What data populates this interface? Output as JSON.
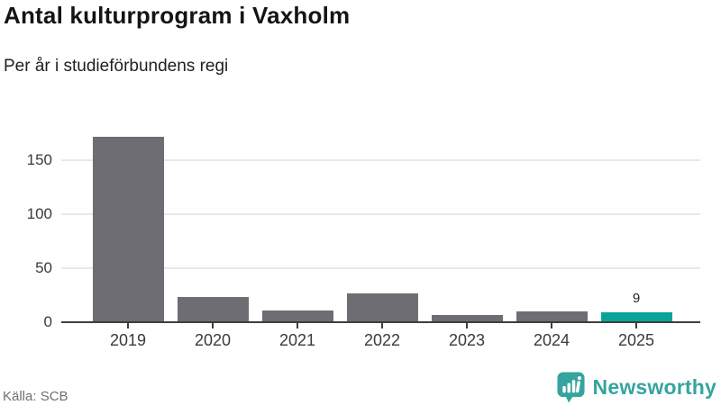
{
  "header": {
    "title": "Antal kulturprogram i Vaxholm",
    "subtitle": "Per år i studieförbundens regi"
  },
  "chart_data": {
    "type": "bar",
    "title": "Antal kulturprogram i Vaxholm",
    "subtitle": "Per år i studieförbundens regi",
    "categories": [
      "2019",
      "2020",
      "2021",
      "2022",
      "2023",
      "2024",
      "2025"
    ],
    "values": [
      172,
      23,
      11,
      27,
      7,
      10,
      9
    ],
    "bar_labels": [
      "",
      "",
      "",
      "",
      "",
      "",
      "9"
    ],
    "highlight_index": 6,
    "xlabel": "",
    "ylabel": "",
    "yticks": [
      0,
      50,
      100,
      150
    ],
    "ylim": [
      0,
      182
    ],
    "grid": "horizontal",
    "legend": "none"
  },
  "footer": {
    "source": "Källa: SCB",
    "brand_name": "Newsworthy"
  },
  "icons": {
    "brand_logo": "newsworthy-speech-bubble-bar-chart-icon"
  },
  "colors": {
    "background": "#ffffff",
    "bar": "#6e6d73",
    "highlight": "#0aa398",
    "axis": "#3e3e3e",
    "gridline": "#e9e9e9",
    "title_text": "#141414",
    "subtitle_text": "#1f1f1f",
    "tick_text": "#3a3a3a",
    "source_text": "#707070",
    "brand": "#35a49f"
  }
}
